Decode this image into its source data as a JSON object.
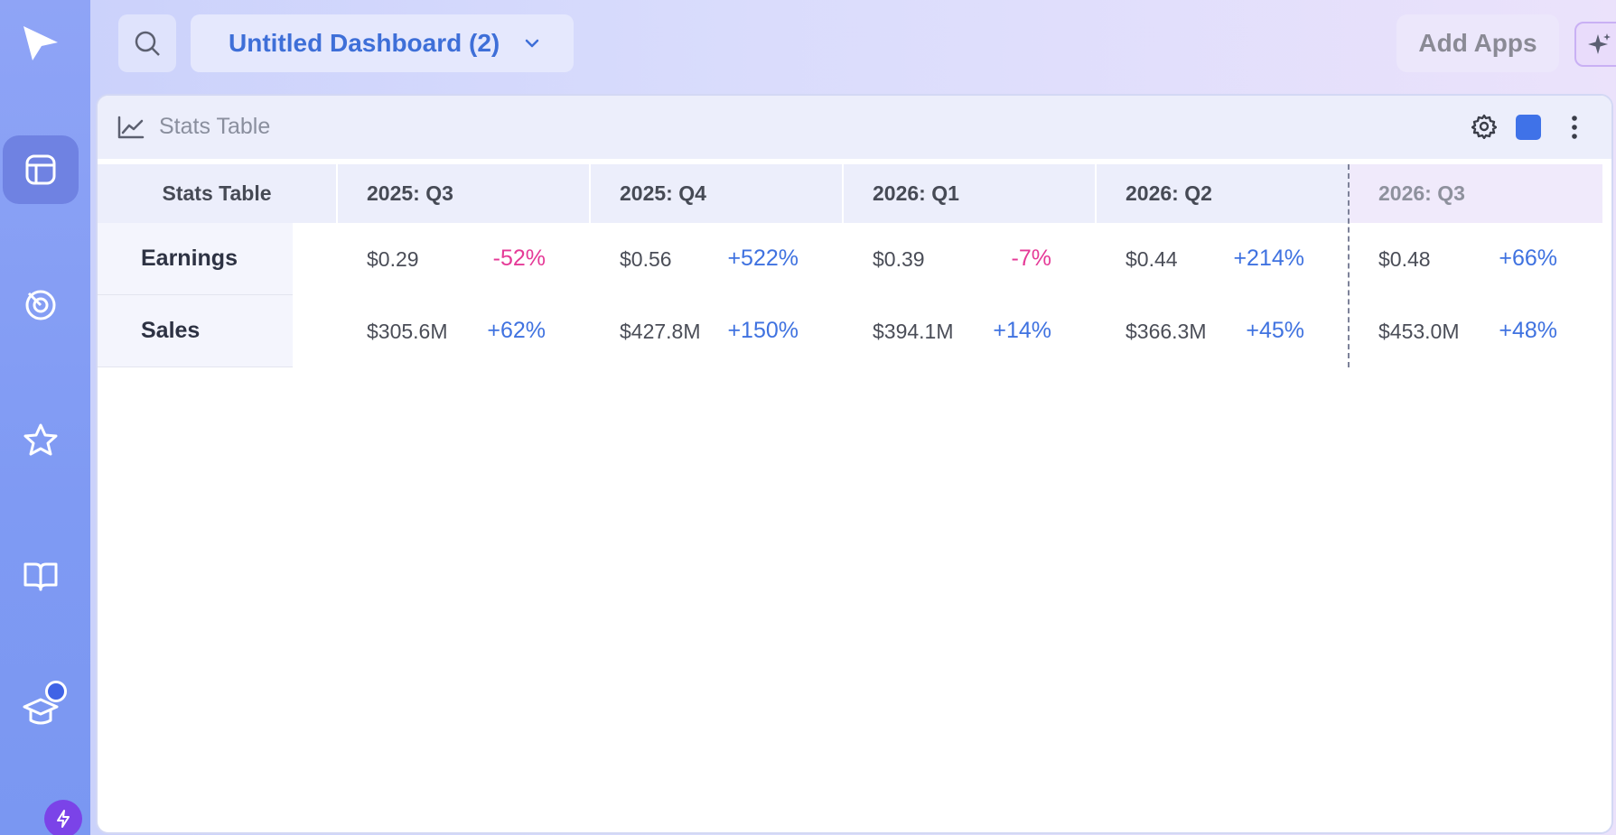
{
  "header": {
    "dashboard_title": "Untitled Dashboard (2)",
    "add_apps_label": "Add Apps"
  },
  "sidebar": {
    "items": [
      {
        "icon": "logo-play-icon"
      },
      {
        "icon": "dashboard-icon",
        "active": true
      },
      {
        "icon": "radar-icon"
      },
      {
        "icon": "star-icon"
      },
      {
        "icon": "book-icon"
      },
      {
        "icon": "graduation-cap-icon"
      },
      {
        "icon": "bolt-icon"
      }
    ]
  },
  "widget": {
    "title": "Stats Table",
    "accent_color": "#3f72e8",
    "table": {
      "corner_label": "Stats Table",
      "columns": [
        "2025: Q3",
        "2025: Q4",
        "2026: Q1",
        "2026: Q2",
        "2026: Q3"
      ],
      "rows": [
        {
          "label": "Earnings",
          "cells": [
            {
              "value": "$0.29",
              "change": "-52%"
            },
            {
              "value": "$0.56",
              "change": "+522%"
            },
            {
              "value": "$0.39",
              "change": "-7%"
            },
            {
              "value": "$0.44",
              "change": "+214%"
            },
            {
              "value": "$0.48",
              "change": "+66%"
            }
          ]
        },
        {
          "label": "Sales",
          "cells": [
            {
              "value": "$305.6M",
              "change": "+62%"
            },
            {
              "value": "$427.8M",
              "change": "+150%"
            },
            {
              "value": "$394.1M",
              "change": "+14%"
            },
            {
              "value": "$366.3M",
              "change": "+45%"
            },
            {
              "value": "$453.0M",
              "change": "+48%"
            }
          ]
        }
      ]
    }
  },
  "colors": {
    "negative": "#e53a97",
    "positive": "#3f72e0",
    "accent": "#3e6fd8"
  }
}
